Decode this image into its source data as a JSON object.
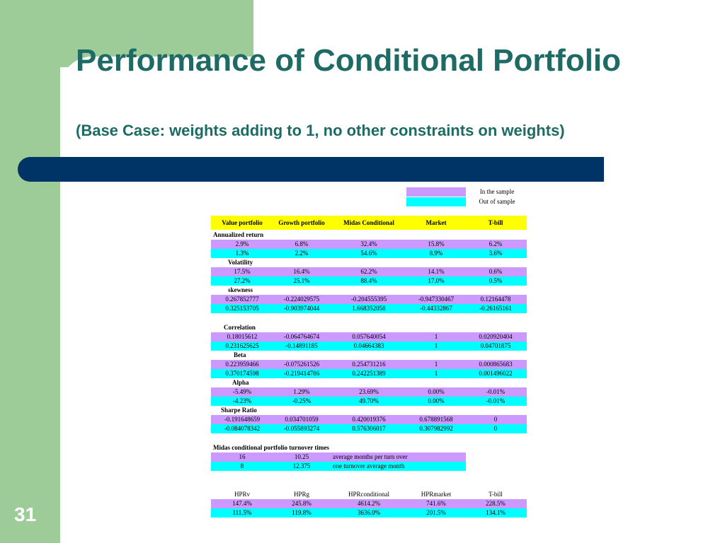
{
  "slide": {
    "title": "Performance of Conditional Portfolio",
    "subtitle": "(Base Case: weights adding to 1, no other constraints on weights)",
    "page_number": "31",
    "colors": {
      "green": "#9dcc99",
      "navy": "#003366",
      "title": "#1d6b64",
      "in_sample": "#cc99ff",
      "out_sample": "#00ffff",
      "header": "#ffff00"
    }
  },
  "legend": {
    "in_sample": "In the sample",
    "out_sample": "Out of sample"
  },
  "table": {
    "headers": [
      "Value portfolio",
      "Growth portfolio",
      "Midas Conditional",
      "Market",
      "T-bill"
    ],
    "sections": [
      {
        "label": "Annualized return",
        "in": [
          "2.9%",
          "6.8%",
          "32.4%",
          "15.8%",
          "6.2%"
        ],
        "out": [
          "1.3%",
          "2.2%",
          "54.6%",
          "8.9%",
          "3.6%"
        ]
      },
      {
        "label": "Volatility",
        "in": [
          "17.5%",
          "16.4%",
          "62.2%",
          "14.1%",
          "0.6%"
        ],
        "out": [
          "27.2%",
          "25.1%",
          "88.4%",
          "17.0%",
          "0.5%"
        ]
      },
      {
        "label": "skewness",
        "in": [
          "0.267852777",
          "-0.224029575",
          "-0.204555395",
          "-0.947330467",
          "0.12164478"
        ],
        "out": [
          "0.325153705",
          "-0.903974044",
          "1.668352058",
          "-0.44332867",
          "-0.26165161"
        ]
      },
      {
        "label": "Correlation",
        "in": [
          "0.18015612",
          "-0.064764674",
          "0.057640054",
          "1",
          "0.020920404"
        ],
        "out": [
          "0.231625625",
          "-0.14891185",
          "0.04664383",
          "1",
          "0.04701875"
        ]
      },
      {
        "label": "Beta",
        "in": [
          "0.223959466",
          "-0.075261526",
          "0.254731216",
          "1",
          "0.000865683"
        ],
        "out": [
          "0.370174598",
          "-0.219414786",
          "0.242251389",
          "1",
          "0.001496022"
        ]
      },
      {
        "label": "Alpha",
        "in": [
          "-5.49%",
          "1.29%",
          "23.69%",
          "0.00%",
          "-0.01%"
        ],
        "out": [
          "-4.23%",
          "-0.25%",
          "49.70%",
          "0.00%",
          "-0.01%"
        ]
      },
      {
        "label": "Sharpe Ratio",
        "in": [
          "-0.191648659",
          "0.034701059",
          "0.420019376",
          "0.678891568",
          "0"
        ],
        "out": [
          "-0.084078342",
          "-0.055893274",
          "0.576306017",
          "0.307982992",
          "0"
        ]
      }
    ]
  },
  "turnover": {
    "label": "Midas conditional portfolio turnover times",
    "rows": [
      [
        "16",
        "10.25",
        "average months per turn over"
      ],
      [
        "8",
        "12.375",
        "one turnover average month"
      ]
    ]
  },
  "hpr": {
    "headers": [
      "HPRv",
      "HPRg",
      "HPRconditional",
      "HPRmarket",
      "T-bill"
    ],
    "in": [
      "147.4%",
      "245.8%",
      "4614.2%",
      "741.6%",
      "228.5%"
    ],
    "out": [
      "111.5%",
      "119.8%",
      "3636.0%",
      "201.5%",
      "134.1%"
    ]
  }
}
